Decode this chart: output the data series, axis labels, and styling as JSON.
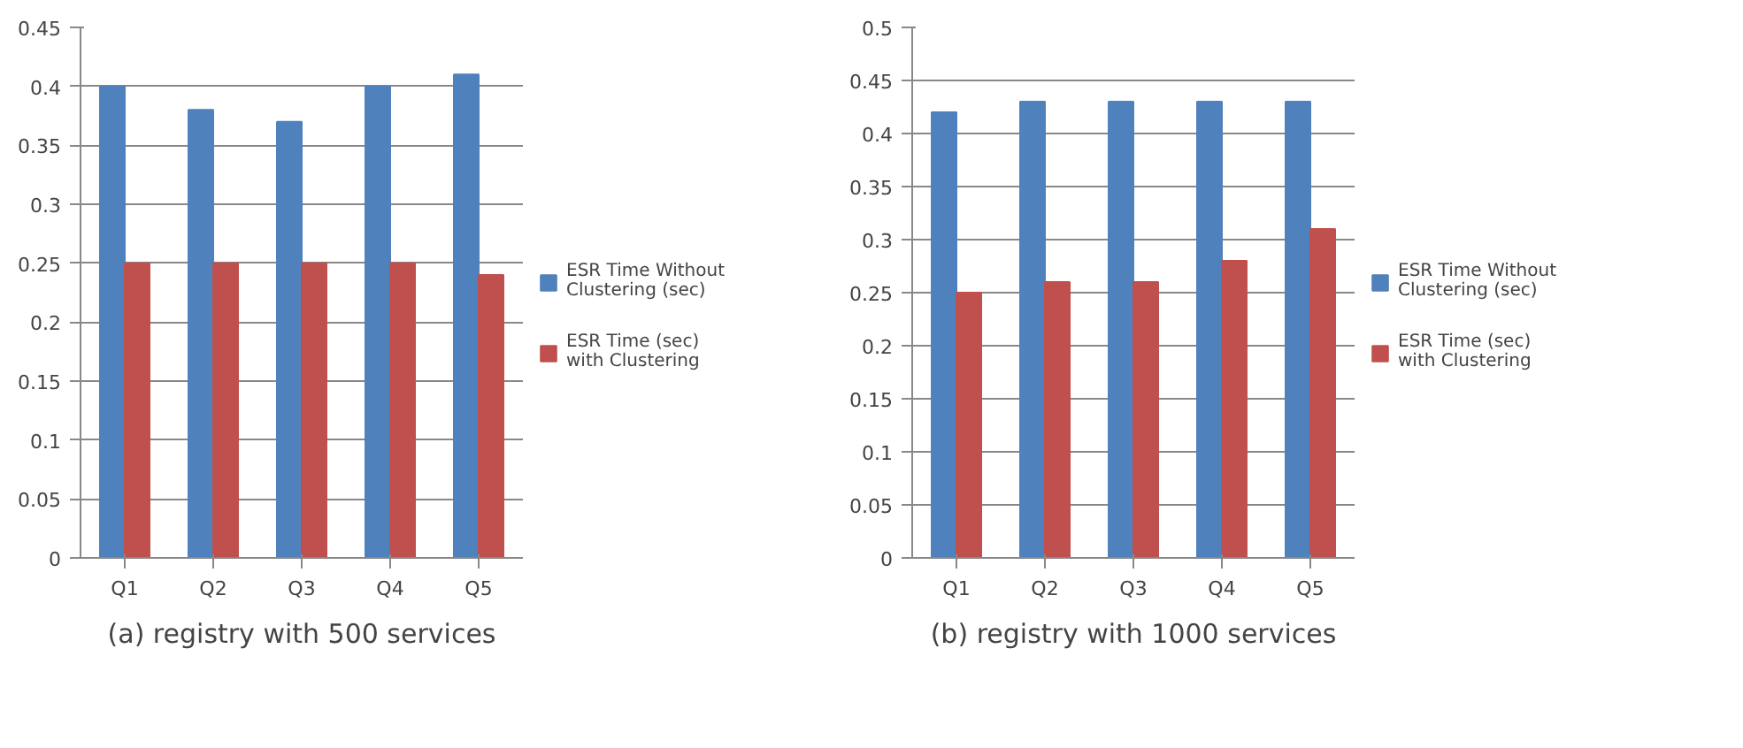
{
  "chart_data": [
    {
      "type": "bar",
      "title": "(a) registry with 500 services",
      "categories": [
        "Q1",
        "Q2",
        "Q3",
        "Q4",
        "Q5"
      ],
      "series": [
        {
          "name": "ESR Time Without Clustering (sec)",
          "color": "#4f81bd",
          "values": [
            0.4,
            0.38,
            0.37,
            0.4,
            0.41
          ]
        },
        {
          "name": "ESR Time (sec) with Clustering",
          "color": "#c0504d",
          "values": [
            0.25,
            0.25,
            0.25,
            0.25,
            0.24
          ]
        }
      ],
      "ylim": [
        0,
        0.45
      ],
      "yticks": [
        0,
        0.05,
        0.1,
        0.15,
        0.2,
        0.25,
        0.3,
        0.35,
        0.4,
        0.45
      ],
      "grid": "y",
      "legend": "right"
    },
    {
      "type": "bar",
      "title": "(b) registry with 1000 services",
      "categories": [
        "Q1",
        "Q2",
        "Q3",
        "Q4",
        "Q5"
      ],
      "series": [
        {
          "name": "ESR Time Without Clustering (sec)",
          "color": "#4f81bd",
          "values": [
            0.42,
            0.43,
            0.43,
            0.43,
            0.43
          ]
        },
        {
          "name": "ESR Time (sec) with Clustering",
          "color": "#c0504d",
          "values": [
            0.25,
            0.26,
            0.26,
            0.28,
            0.31
          ]
        }
      ],
      "ylim": [
        0,
        0.5
      ],
      "yticks": [
        0,
        0.05,
        0.1,
        0.15,
        0.2,
        0.25,
        0.3,
        0.35,
        0.4,
        0.45,
        0.5
      ],
      "grid": "y",
      "legend": "right"
    }
  ]
}
